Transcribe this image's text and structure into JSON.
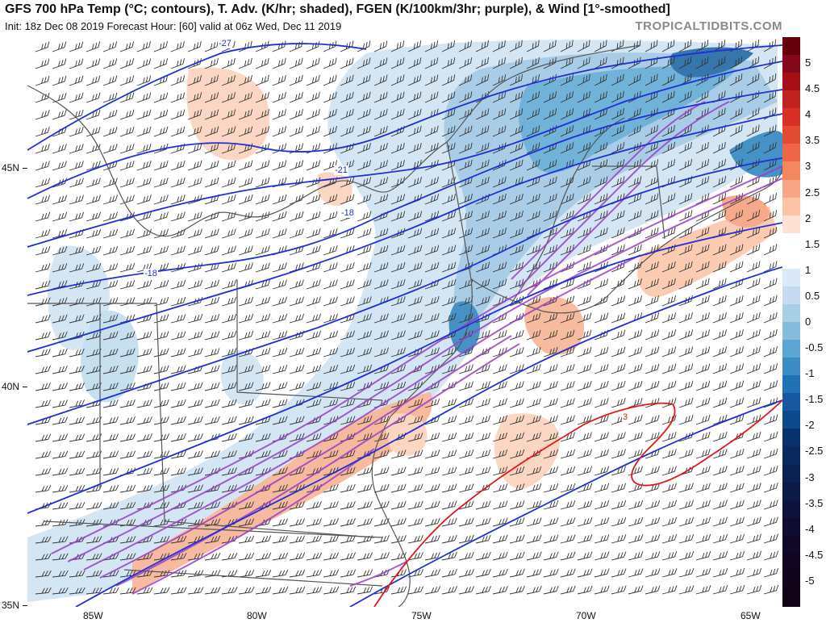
{
  "header": {
    "title": "GFS 700 hPa Temp (°C; contours), T. Adv. (K/hr; shaded), FGEN (K/100km/3hr; purple), & Wind [1°-smoothed]",
    "subtitle": "Init: 18z Dec 08 2019   Forecast Hour: [60]   valid at 06z Wed, Dec 11 2019",
    "brand": "TROPICALTIDBITS.COM"
  },
  "map": {
    "lat_labels": [
      "45N",
      "40N",
      "35N"
    ],
    "lon_labels": [
      "85W",
      "80W",
      "75W",
      "70W",
      "65W"
    ],
    "contour_labels": [
      "-27",
      "-21",
      "-18",
      "-18",
      "3"
    ],
    "colors": {
      "temp_contour": "#1f2fd6",
      "warm_contour": "#e01818",
      "fgen_contour": "#9b3fc8",
      "cold_adv_light": "#c5dff0",
      "cold_adv_mid": "#6aaed6",
      "cold_adv_dark": "#2c6fa8",
      "warm_adv_light": "#fbd5c0",
      "warm_adv_mid": "#f2a383"
    }
  },
  "colorbar": {
    "labels": [
      "5",
      "4.5",
      "4",
      "3.5",
      "3",
      "2.5",
      "2",
      "1.5",
      "1",
      "0.5",
      "0",
      "-0.5",
      "-1",
      "-1.5",
      "-2",
      "-2.5",
      "-3",
      "-3.5",
      "-4",
      "-4.5",
      "-5"
    ],
    "colors": [
      "#67000d",
      "#86061a",
      "#a50f15",
      "#c0231f",
      "#d73027",
      "#e34a33",
      "#ef6548",
      "#f4875f",
      "#f7a585",
      "#fbc4a8",
      "#fde1d2",
      "#ffffff",
      "#ffffff",
      "#dbe9f6",
      "#c6dbef",
      "#a9cfe5",
      "#85bcdc",
      "#5ea6d2",
      "#3d8dc4",
      "#2171b5",
      "#1759a0",
      "#0d4a8c",
      "#08306b",
      "#0a2a5e",
      "#0b2152",
      "#0c1a45",
      "#0d133a",
      "#0e0c30",
      "#0f0826",
      "#10051e",
      "#11031a",
      "#120216"
    ]
  }
}
